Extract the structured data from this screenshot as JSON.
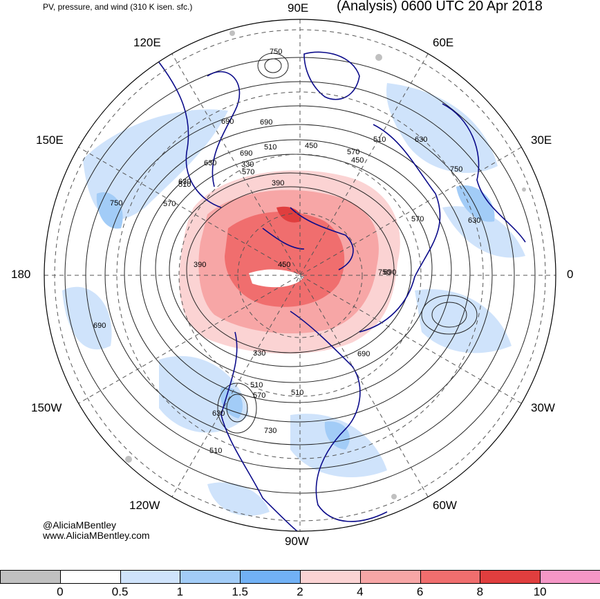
{
  "header": {
    "subtitle": "PV, pressure, and wind (310 K isen. sfc.)",
    "title": "(Analysis) 0600 UTC 20 Apr 2018"
  },
  "longitude_labels": [
    "90E",
    "60E",
    "30E",
    "0",
    "30W",
    "60W",
    "90W",
    "120W",
    "150W",
    "180",
    "150E",
    "120E"
  ],
  "contour_labels": [
    "750",
    "690",
    "630",
    "570",
    "510",
    "450",
    "390",
    "330",
    "690",
    "750",
    "690",
    "630",
    "570",
    "510",
    "450",
    "390",
    "330",
    "690",
    "570",
    "510",
    "450",
    "630",
    "690",
    "750",
    "570",
    "630",
    "690",
    "750",
    "510",
    "510",
    "570",
    "630",
    "730",
    "510"
  ],
  "credits": {
    "handle": "@AliciaMBentley",
    "website": "www.AliciaMBentley.com"
  },
  "colorbar": {
    "labels": [
      "0",
      "0.5",
      "1",
      "1.5",
      "2",
      "4",
      "6",
      "8",
      "10"
    ],
    "colors": [
      "#c0c0c0",
      "#ffffff",
      "#cfe3fb",
      "#a2ccf7",
      "#71b1f5",
      "#fbd3d3",
      "#f7a6a6",
      "#f06e6e",
      "#e03e3e",
      "#f596c6"
    ]
  },
  "map_colors": {
    "ocean": "#ffffff",
    "coast": "#0b0b8a",
    "contour": "#222222",
    "grid": "#555555"
  }
}
